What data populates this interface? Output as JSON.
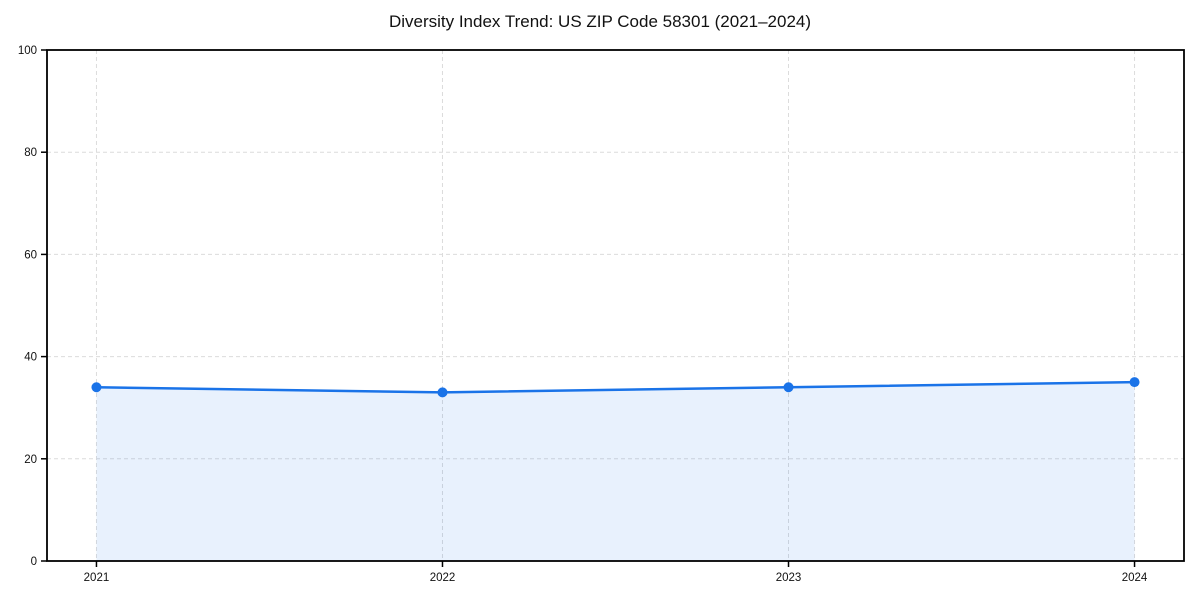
{
  "chart_data": {
    "type": "area",
    "title": "Diversity Index Trend: US ZIP Code 58301 (2021–2024)",
    "x": [
      "2021",
      "2022",
      "2023",
      "2024"
    ],
    "series": [
      {
        "name": "Diversity Index",
        "values": [
          34,
          33,
          34,
          35
        ]
      }
    ],
    "xlabel": "",
    "ylabel": "",
    "ylim": [
      0,
      100
    ],
    "yticks": [
      0,
      20,
      40,
      60,
      80,
      100
    ],
    "grid": true,
    "grid_style": "dashed",
    "legend": "none",
    "colors": {
      "line": "#1a73e8",
      "marker": "#1a73e8",
      "fill_rgba": "rgba(26,115,232,0.10)",
      "grid": "#dcdcdc",
      "axis_frame": "#000000",
      "tick_text": "#111111",
      "background": "#ffffff"
    }
  }
}
